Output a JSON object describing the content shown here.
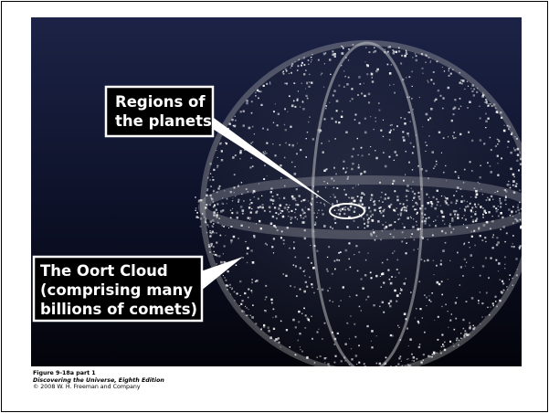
{
  "figure": {
    "labels": {
      "planets": [
        "Regions of",
        "the planets"
      ],
      "oort": [
        "The Oort Cloud",
        "(comprising many",
        "billions of comets)"
      ]
    },
    "caption": {
      "figure": "Figure 9-18a part 1",
      "book": "Discovering the Universe, Eighth Edition",
      "copyright": "© 2008 W. H. Freeman and Company"
    }
  }
}
